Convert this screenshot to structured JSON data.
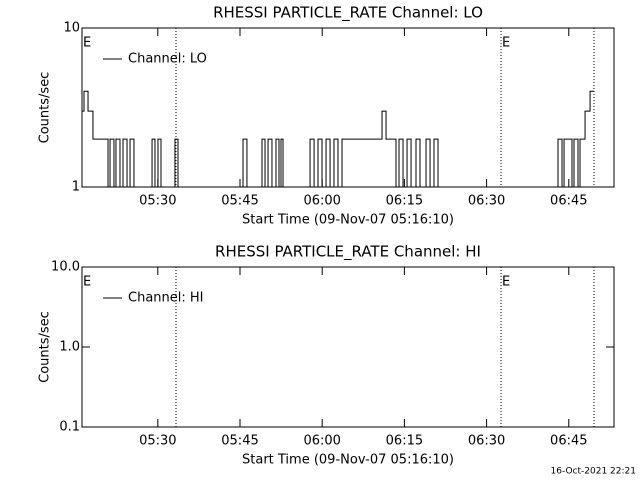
{
  "chart_data": [
    {
      "type": "line",
      "title": "RHESSI PARTICLE_RATE Channel: LO",
      "x_label": "Start Time (09-Nov-07 05:16:10)",
      "y_label": "Counts/sec",
      "log_y": true,
      "step": true,
      "xlim": [
        "05:16:10",
        "06:53:15"
      ],
      "xticks": [
        "05:30",
        "05:45",
        "06:00",
        "06:15",
        "06:30",
        "06:45"
      ],
      "ylim": [
        1,
        10
      ],
      "yticks": [
        1,
        10
      ],
      "marker_lines": [
        "05:33:19",
        "06:32:38",
        "06:49:36"
      ],
      "annotations": [
        {
          "x": "05:16:10",
          "label": "E"
        },
        {
          "x": "06:32:38",
          "label": "E"
        }
      ],
      "legend": "top-left",
      "series": [
        {
          "name": "Channel: LO",
          "color": "#000000",
          "x": [
            "05:16:10",
            "05:16:32",
            "05:17:16",
            "05:18:10",
            "05:20:55",
            "05:21:17",
            "05:22:00",
            "05:22:22",
            "05:23:06",
            "05:23:39",
            "05:24:23",
            "05:24:56",
            "05:25:39",
            "05:28:57",
            "05:29:29",
            "05:30:02",
            "05:30:35",
            "05:33:08",
            "05:33:41",
            "05:45:33",
            "05:46:16",
            "05:49:01",
            "05:49:34",
            "05:50:07",
            "05:50:50",
            "05:51:34",
            "05:52:07",
            "05:52:29",
            "05:52:51",
            "05:57:47",
            "05:58:31",
            "05:59:14",
            "05:59:58",
            "06:00:42",
            "06:01:26",
            "06:02:09",
            "06:02:53",
            "06:03:37",
            "06:10:55",
            "06:11:39",
            "06:13:28",
            "06:14:01",
            "06:14:45",
            "06:15:29",
            "06:16:13",
            "06:17:07",
            "06:17:51",
            "06:18:57",
            "06:19:41",
            "06:20:24",
            "06:21:08",
            "06:43:02",
            "06:43:46",
            "06:44:08",
            "06:45:35",
            "06:45:57",
            "06:46:41",
            "06:47:03",
            "06:47:58",
            "06:48:53",
            "06:49:36"
          ],
          "values": [
            3,
            4,
            3,
            2,
            1,
            2,
            1,
            2,
            1,
            2,
            1,
            2,
            1,
            2,
            1,
            2,
            1,
            2,
            1,
            2,
            1,
            2,
            1,
            2,
            1,
            2,
            1,
            2,
            1,
            2,
            1,
            2,
            1,
            2,
            1,
            2,
            1,
            2,
            3,
            2,
            1,
            2,
            1,
            2,
            1,
            2,
            1,
            2,
            1,
            2,
            1,
            2,
            1,
            2,
            1,
            2,
            1,
            2,
            3,
            4,
            4
          ]
        }
      ]
    },
    {
      "type": "line",
      "title": "RHESSI PARTICLE_RATE Channel: HI",
      "x_label": "Start Time (09-Nov-07 05:16:10)",
      "y_label": "Counts/sec",
      "log_y": true,
      "step": true,
      "xlim": [
        "05:16:10",
        "06:53:15"
      ],
      "xticks": [
        "05:30",
        "05:45",
        "06:00",
        "06:15",
        "06:30",
        "06:45"
      ],
      "ylim": [
        0.1,
        10
      ],
      "yticks": [
        0.1,
        {
          "value": 1,
          "label": "1.0"
        },
        {
          "value": 10,
          "label": "10.0"
        }
      ],
      "marker_lines": [
        "05:33:19",
        "06:32:38",
        "06:49:36"
      ],
      "annotations": [
        {
          "x": "05:16:10",
          "label": "E"
        },
        {
          "x": "06:32:38",
          "label": "E"
        }
      ],
      "legend": "top-left",
      "series": [
        {
          "name": "Channel: HI",
          "color": "#000000",
          "x": [],
          "values": []
        }
      ]
    }
  ],
  "footer": "16-Oct-2021 22:21"
}
